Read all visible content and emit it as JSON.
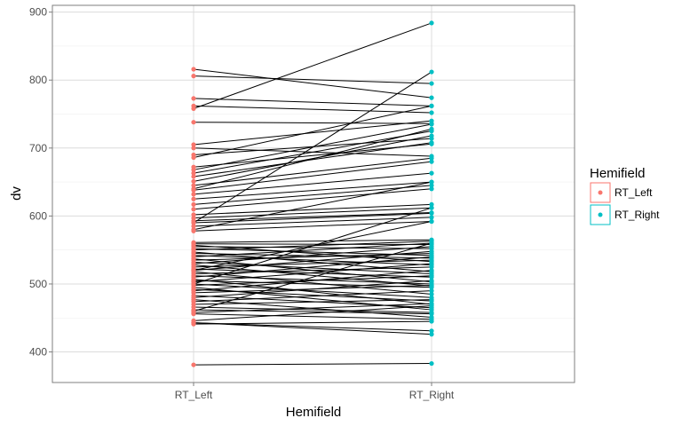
{
  "chart_data": {
    "type": "line",
    "title": "",
    "xlabel": "Hemifield",
    "ylabel": "dv",
    "categories": [
      "RT_Left",
      "RT_Right"
    ],
    "ylim": [
      355,
      910
    ],
    "yticks": [
      400,
      500,
      600,
      700,
      800,
      900
    ],
    "grid": true,
    "legend": {
      "title": "Hemifield",
      "position": "right",
      "entries": [
        {
          "label": "RT_Left",
          "color": "#F8766D"
        },
        {
          "label": "RT_Right",
          "color": "#00BFC4"
        }
      ]
    },
    "colors": {
      "RT_Left": "#F8766D",
      "RT_Right": "#00BFC4",
      "line": "#000000"
    },
    "pairs": [
      [
        381,
        383
      ],
      [
        441,
        445
      ],
      [
        443,
        426
      ],
      [
        443,
        431
      ],
      [
        446,
        468
      ],
      [
        456,
        448
      ],
      [
        458,
        471
      ],
      [
        462,
        456
      ],
      [
        466,
        458
      ],
      [
        470,
        477
      ],
      [
        474,
        490
      ],
      [
        477,
        451
      ],
      [
        480,
        505
      ],
      [
        483,
        465
      ],
      [
        487,
        498
      ],
      [
        490,
        520
      ],
      [
        492,
        475
      ],
      [
        495,
        462
      ],
      [
        498,
        512
      ],
      [
        500,
        480
      ],
      [
        503,
        530
      ],
      [
        505,
        495
      ],
      [
        507,
        470
      ],
      [
        510,
        540
      ],
      [
        512,
        500
      ],
      [
        515,
        525
      ],
      [
        518,
        485
      ],
      [
        520,
        548
      ],
      [
        522,
        510
      ],
      [
        525,
        535
      ],
      [
        528,
        497
      ],
      [
        530,
        555
      ],
      [
        532,
        515
      ],
      [
        535,
        545
      ],
      [
        537,
        503
      ],
      [
        540,
        560
      ],
      [
        542,
        528
      ],
      [
        545,
        538
      ],
      [
        547,
        518
      ],
      [
        550,
        563
      ],
      [
        552,
        542
      ],
      [
        555,
        552
      ],
      [
        557,
        533
      ],
      [
        559,
        558
      ],
      [
        561,
        565
      ],
      [
        520,
        592
      ],
      [
        500,
        612
      ],
      [
        460,
        560
      ],
      [
        578,
        592
      ],
      [
        585,
        598
      ],
      [
        590,
        604
      ],
      [
        593,
        605
      ],
      [
        597,
        612
      ],
      [
        602,
        617
      ],
      [
        610,
        640
      ],
      [
        617,
        645
      ],
      [
        625,
        650
      ],
      [
        632,
        663
      ],
      [
        638,
        680
      ],
      [
        645,
        685
      ],
      [
        651,
        718
      ],
      [
        658,
        708
      ],
      [
        663,
        725
      ],
      [
        668,
        735
      ],
      [
        672,
        706
      ],
      [
        686,
        762
      ],
      [
        690,
        714
      ],
      [
        700,
        688
      ],
      [
        705,
        740
      ],
      [
        738,
        736
      ],
      [
        758,
        884
      ],
      [
        762,
        752
      ],
      [
        773,
        762
      ],
      [
        806,
        795
      ],
      [
        816,
        774
      ],
      [
        590,
        812
      ],
      [
        640,
        728
      ],
      [
        580,
        650
      ]
    ]
  }
}
